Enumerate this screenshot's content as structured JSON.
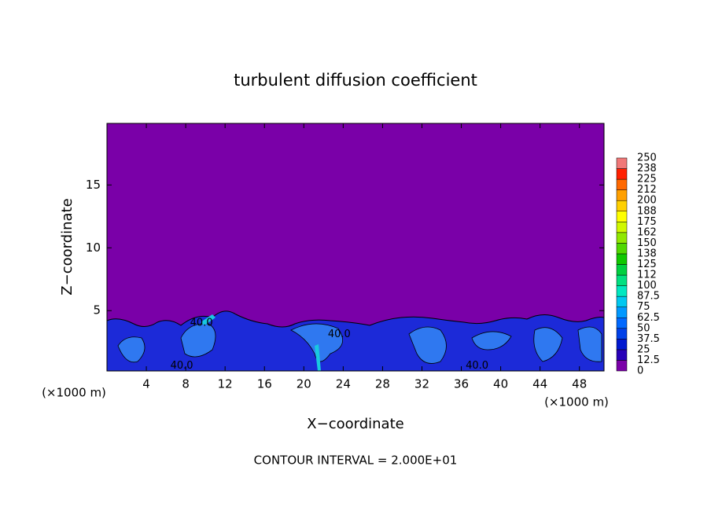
{
  "chart_data": {
    "type": "contour",
    "title": "turbulent diffusion coefficient",
    "x_label": "X−coordinate",
    "y_label": "Z−coordinate",
    "x_unit": "(×1000 m)",
    "x_unit_right": "(×1000 m)",
    "footer": "CONTOUR INTERVAL = 2.000E+01",
    "xlim": [
      0,
      50.5
    ],
    "ylim": [
      0.2,
      19.9
    ],
    "xticks": [
      4,
      8,
      12,
      16,
      20,
      24,
      28,
      32,
      36,
      40,
      44,
      48
    ],
    "yticks": [
      5,
      10,
      15
    ],
    "background_color": "#7a00a8",
    "annotations": [
      {
        "text": "40.0",
        "x": 7.6,
        "y": 0.6
      },
      {
        "text": "40.0",
        "x": 9.6,
        "y": 4.0
      },
      {
        "text": "40.0",
        "x": 23.6,
        "y": 3.1
      },
      {
        "text": "40.0",
        "x": 37.6,
        "y": 0.6
      }
    ],
    "colorbar": {
      "levels": [
        0,
        12.5,
        25,
        37.5,
        50,
        62.5,
        75,
        87.5,
        100,
        {
          "value": 112.5,
          "label": "112"
        },
        125,
        {
          "value": 137.5,
          "label": "138"
        },
        150,
        {
          "value": 162.5,
          "label": "162"
        },
        175,
        {
          "value": 187.5,
          "label": "188"
        },
        200,
        {
          "value": 212.5,
          "label": "212"
        },
        225,
        {
          "value": 237.5,
          "label": "238"
        },
        250
      ],
      "colors": [
        "#7a00a8",
        "#2800b8",
        "#0018d0",
        "#0040e8",
        "#0068ff",
        "#0098ff",
        "#00c8f0",
        "#00e8c0",
        "#00e080",
        "#00d040",
        "#10c800",
        "#50d800",
        "#90e800",
        "#d0f800",
        "#ffff00",
        "#ffd000",
        "#ffa000",
        "#ff6800",
        "#ff2000",
        "#f07878"
      ]
    }
  }
}
